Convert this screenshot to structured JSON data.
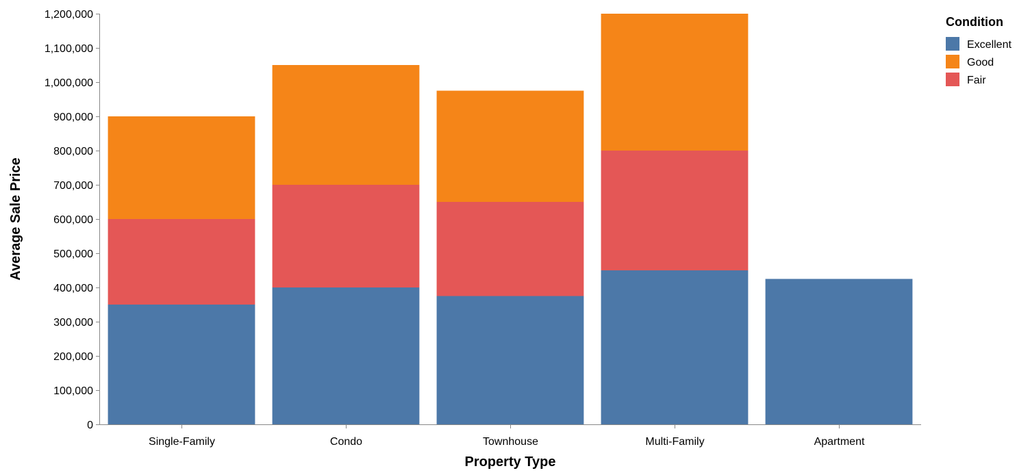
{
  "chart_data": {
    "type": "bar",
    "stacked": true,
    "xlabel": "Property Type",
    "ylabel": "Average Sale Price",
    "ylim": [
      0,
      1200000
    ],
    "yticks": [
      0,
      100000,
      200000,
      300000,
      400000,
      500000,
      600000,
      700000,
      800000,
      900000,
      1000000,
      1100000,
      1200000
    ],
    "categories": [
      "Single-Family",
      "Condo",
      "Townhouse",
      "Multi-Family",
      "Apartment"
    ],
    "stack_order": [
      "Excellent",
      "Fair",
      "Good"
    ],
    "series": [
      {
        "name": "Excellent",
        "color": "#4c78a8",
        "values": [
          350000,
          400000,
          375000,
          450000,
          425000
        ]
      },
      {
        "name": "Good",
        "color": "#f58518",
        "values": [
          300000,
          350000,
          325000,
          400000,
          0
        ]
      },
      {
        "name": "Fair",
        "color": "#e45756",
        "values": [
          250000,
          300000,
          275000,
          350000,
          0
        ]
      }
    ],
    "legend": {
      "title": "Condition",
      "position": "top-right",
      "items": [
        "Excellent",
        "Good",
        "Fair"
      ]
    },
    "grid": false
  }
}
